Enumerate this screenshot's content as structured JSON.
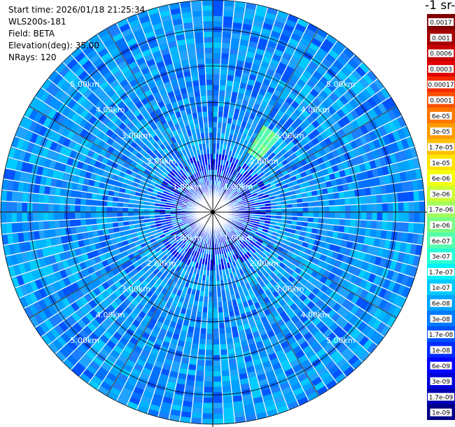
{
  "header": {
    "start_time": "Start time: 2026/01/18 21:25:34",
    "instrument": "WLS200s-181",
    "field": "Field: BETA",
    "elevation": "Elevation(deg): 35.00",
    "nrays": "NRays: 120"
  },
  "colorbar": {
    "title": "-1 sr-",
    "labels": [
      "0.0017",
      "0.001",
      "0.0006",
      "0.0003",
      "0.00017",
      "0.0001",
      "6e-05",
      "3e-05",
      "1.7e-05",
      "1e-05",
      "6e-06",
      "3e-06",
      "1.7e-06",
      "1e-06",
      "6e-07",
      "3e-07",
      "1.7e-07",
      "1e-07",
      "6e-08",
      "3e-08",
      "1.7e-08",
      "1e-08",
      "6e-09",
      "3e-09",
      "1.7e-09",
      "1e-09"
    ],
    "colors": [
      "#800000",
      "#a40000",
      "#c80000",
      "#e00000",
      "#f52a00",
      "#fb4f00",
      "#ff7700",
      "#ff9c00",
      "#ffc000",
      "#ffe400",
      "#f3ff0c",
      "#cbff34",
      "#a3ff5c",
      "#7bff84",
      "#53ffac",
      "#2bffd4",
      "#03f0f8",
      "#00cbff",
      "#00a3ff",
      "#007bff",
      "#0053ff",
      "#002bff",
      "#0003ff",
      "#0000d8",
      "#0000b0",
      "#000088"
    ]
  },
  "chart_data": {
    "type": "polar-ppi",
    "field": "BETA",
    "elevation_deg": 35.0,
    "nrays": 120,
    "range_rings_km": [
      1,
      2,
      3,
      4,
      5
    ],
    "range_labels": [
      "1.00km",
      "2.00km",
      "3.00km",
      "4.00km",
      "5.00km"
    ],
    "max_range_km": 5.8,
    "scale": "log",
    "value_range": [
      1e-09,
      0.0017
    ],
    "notes_feature": "enhanced backscatter (≈1e-06–3e-06) at ~2–3 km range, azimuth ~30–40°"
  }
}
